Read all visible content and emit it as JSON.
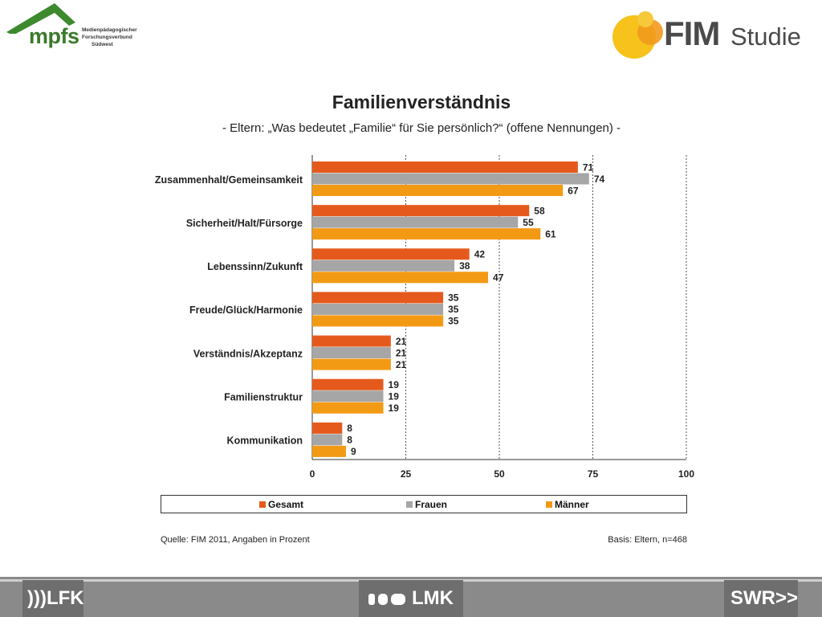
{
  "header": {
    "left_logo": {
      "name": "mpfs",
      "sub": [
        "Medienpädagogischer",
        "Forschungsverbund",
        "Südwest"
      ]
    },
    "right_logo": {
      "fim": "FIM",
      "studie": "Studie"
    }
  },
  "colors": {
    "gesamt": "#e55a1c",
    "frauen": "#a6a6a6",
    "maenner": "#f39a14"
  },
  "chart_data": {
    "type": "bar",
    "orientation": "horizontal",
    "title": "Familienverständnis",
    "subtitle": "- Eltern: „Was bedeutet „Familie“ für Sie persönlich?“ (offene Nennungen) -",
    "categories": [
      "Zusammenhalt/Gemeinsamkeit",
      "Sicherheit/Halt/Fürsorge",
      "Lebenssinn/Zukunft",
      "Freude/Glück/Harmonie",
      "Verständnis/Akzeptanz",
      "Familienstruktur",
      "Kommunikation"
    ],
    "series": [
      {
        "name": "Gesamt",
        "values": [
          71,
          58,
          42,
          35,
          21,
          19,
          8
        ]
      },
      {
        "name": "Frauen",
        "values": [
          74,
          55,
          38,
          35,
          21,
          19,
          8
        ]
      },
      {
        "name": "Männer",
        "values": [
          67,
          61,
          47,
          35,
          21,
          19,
          9
        ]
      }
    ],
    "xlim": [
      0,
      100
    ],
    "xticks": [
      0,
      25,
      50,
      75,
      100
    ],
    "grid": "vertical dashed",
    "legend_position": "bottom"
  },
  "footer_notes": {
    "source": "Quelle: FIM 2011,  Angaben in Prozent",
    "basis": "Basis: Eltern, n=468"
  },
  "footer_logos": {
    "lfk": "LFK",
    "lmk": "LMK",
    "swr": "SWR"
  }
}
